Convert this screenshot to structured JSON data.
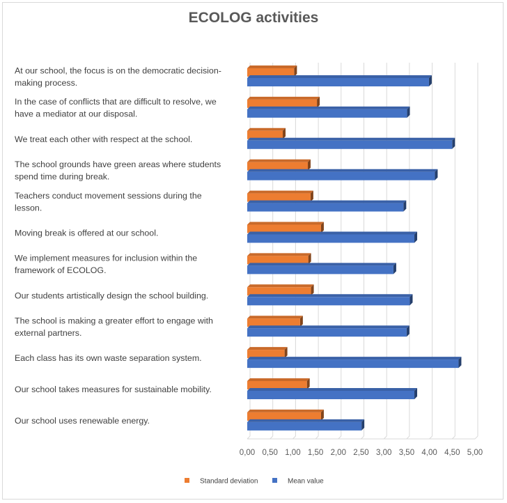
{
  "chart_data": {
    "type": "bar",
    "orientation": "horizontal",
    "style": "3d-clustered",
    "title": "ECOLOG activities",
    "categories": [
      "At our school, the focus is on the democratic decision-making process.",
      "In the case of conflicts that are difficult to resolve, we have a mediator at our disposal.",
      "We treat each other with respect at the school.",
      "The school grounds have green areas where students spend time during break.",
      "Teachers conduct movement sessions during the lesson.",
      "Moving break is offered at our school.",
      "We implement measures for inclusion within the framework of ECOLOG.",
      "Our students artistically design the school building.",
      "The school is making a greater effort to engage with external partners.",
      "Each class has its own waste separation system.",
      "Our school takes measures for sustainable mobility.",
      "Our school uses renewable energy."
    ],
    "category_label_lines": [
      [
        "At our school, the focus is on the democratic decision-",
        "making process."
      ],
      [
        "In the case of conflicts that are difficult to resolve, we",
        "have a mediator at our disposal."
      ],
      [
        "We treat each other with respect at the school."
      ],
      [
        "The school grounds have green areas where students",
        "spend time during break."
      ],
      [
        "Teachers conduct movement sessions during the",
        "lesson."
      ],
      [
        "Moving break is offered at our school."
      ],
      [
        "We implement measures for inclusion within the",
        "framework of ECOLOG."
      ],
      [
        "Our students artistically design the school building."
      ],
      [
        "The school is making a greater effort to engage with",
        "external partners."
      ],
      [
        "Each class has its own waste separation system."
      ],
      [
        "Our school takes measures for sustainable mobility."
      ],
      [
        "Our school uses renewable energy."
      ]
    ],
    "series": [
      {
        "name": "Standard deviation",
        "color": "#ed7d31",
        "values": [
          1.03,
          1.53,
          0.78,
          1.33,
          1.39,
          1.62,
          1.34,
          1.4,
          1.16,
          0.82,
          1.31,
          1.62
        ]
      },
      {
        "name": "Mean value",
        "color": "#4472c4",
        "values": [
          3.99,
          3.51,
          4.5,
          4.12,
          3.43,
          3.67,
          3.21,
          3.57,
          3.5,
          4.64,
          3.67,
          2.51
        ]
      }
    ],
    "x_ticks": [
      "0,00",
      "0,50",
      "1,00",
      "1,50",
      "2,00",
      "2,50",
      "3,00",
      "3,50",
      "4,00",
      "4,50",
      "5,00"
    ],
    "xlim": [
      0,
      5
    ],
    "grid": true,
    "legend_position": "bottom"
  }
}
